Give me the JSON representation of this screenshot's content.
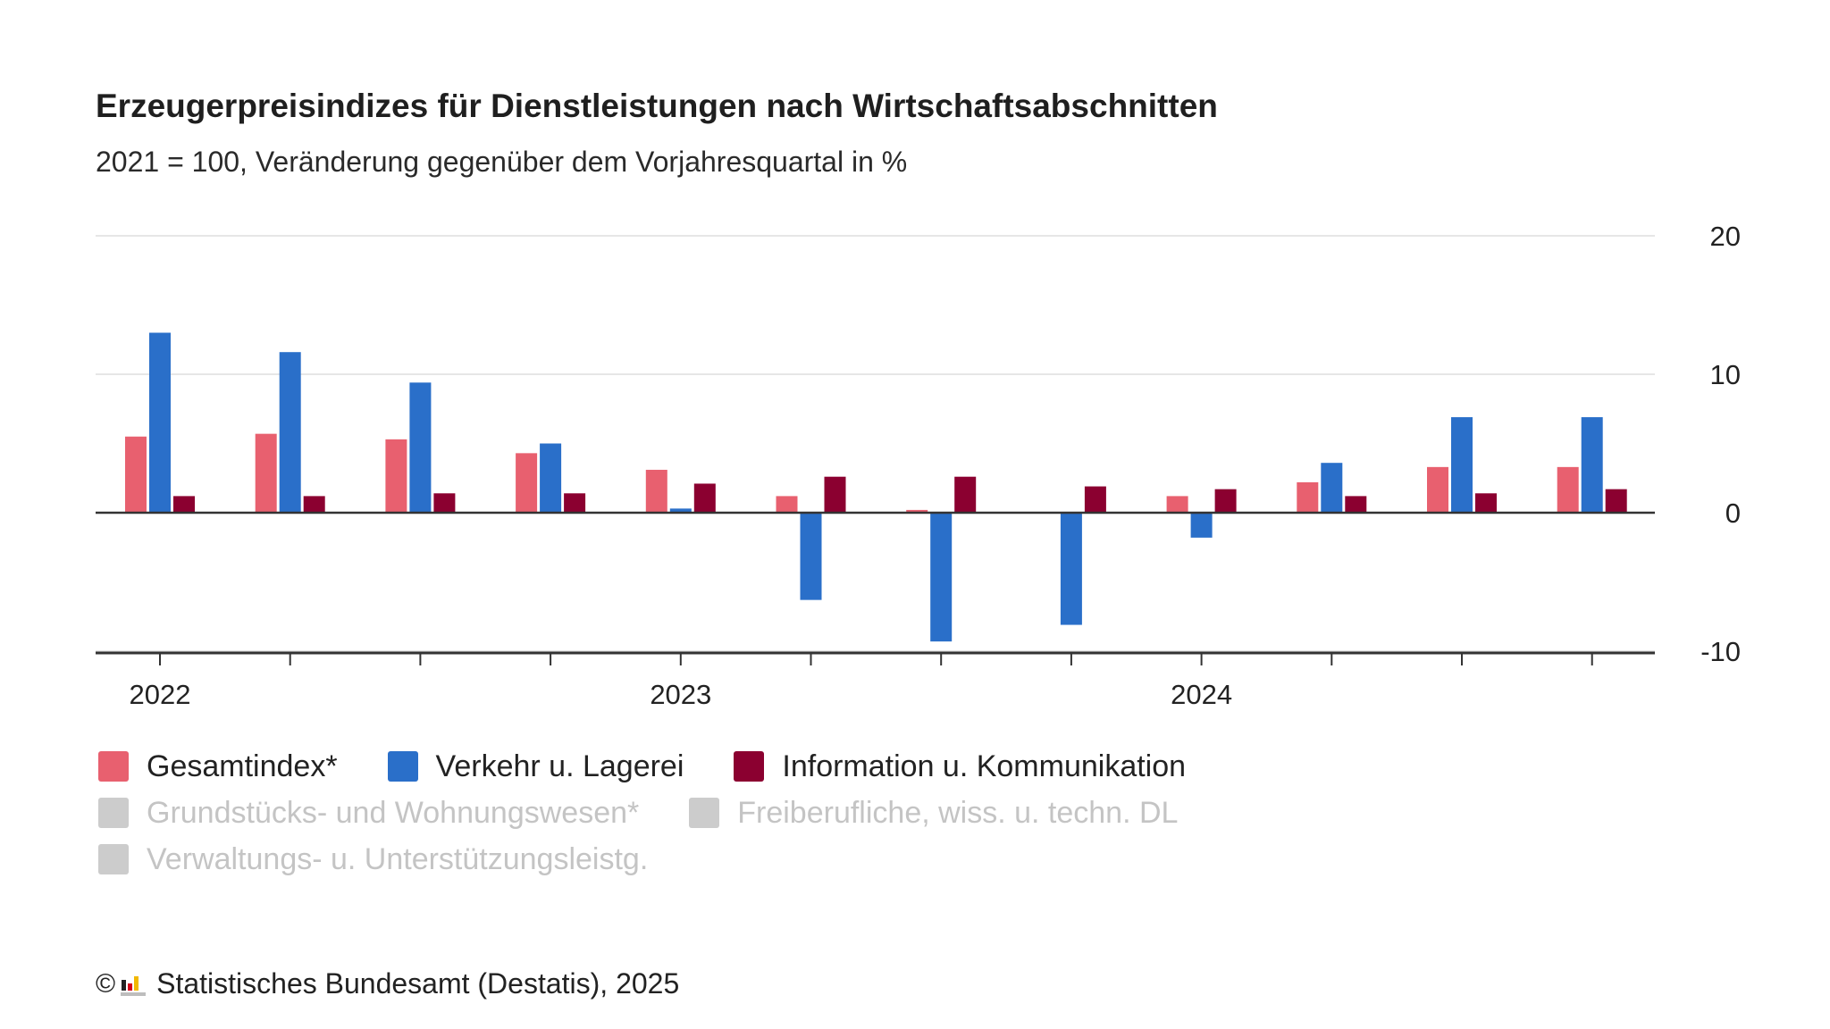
{
  "title": "Erzeugerpreisindizes für Dienstleistungen nach Wirtschaftsabschnitten",
  "subtitle": "2021 = 100, Veränderung gegenüber dem Vorjahresquartal in %",
  "footer": {
    "copyright_symbol": "©",
    "source": "Statistisches Bundesamt (Destatis), 2025"
  },
  "colors": {
    "gesamt": "#e8606f",
    "verkehr": "#2a6fc9",
    "info": "#8b0030",
    "inactive": "#cccccc",
    "axis": "#333333",
    "grid": "#dddddd"
  },
  "legend": [
    {
      "label": "Gesamtindex*",
      "color": "#e8606f",
      "active": true
    },
    {
      "label": "Verkehr u. Lagerei",
      "color": "#2a6fc9",
      "active": true
    },
    {
      "label": "Information u. Kommunikation",
      "color": "#8b0030",
      "active": true
    },
    {
      "label": "Grundstücks- und Wohnungswesen*",
      "color": "#cccccc",
      "active": false
    },
    {
      "label": "Freiberufliche, wiss. u. techn. DL",
      "color": "#cccccc",
      "active": false
    },
    {
      "label": "Verwaltungs- u. Unterstützungsleistg.",
      "color": "#cccccc",
      "active": false
    }
  ],
  "chart_data": {
    "type": "bar",
    "categories": [
      "2022 Q1",
      "2022 Q2",
      "2022 Q3",
      "2022 Q4",
      "2023 Q1",
      "2023 Q2",
      "2023 Q3",
      "2023 Q4",
      "2024 Q1",
      "2024 Q2",
      "2024 Q3",
      "2024 Q4"
    ],
    "x_tick_labels": [
      "2022",
      "",
      "",
      "",
      "2023",
      "",
      "",
      "",
      "2024",
      "",
      "",
      ""
    ],
    "series": [
      {
        "name": "Gesamtindex*",
        "color": "#e8606f",
        "values": [
          5.5,
          5.7,
          5.3,
          4.3,
          3.1,
          1.2,
          0.2,
          0.0,
          1.2,
          2.2,
          3.3,
          3.3
        ]
      },
      {
        "name": "Verkehr u. Lagerei",
        "color": "#2a6fc9",
        "values": [
          13.0,
          11.6,
          9.4,
          5.0,
          0.3,
          -6.3,
          -9.3,
          -8.1,
          -1.8,
          3.6,
          6.9,
          6.9
        ]
      },
      {
        "name": "Information u. Kommunikation",
        "color": "#8b0030",
        "values": [
          1.2,
          1.2,
          1.4,
          1.4,
          2.1,
          2.6,
          2.6,
          1.9,
          1.7,
          1.2,
          1.4,
          1.7
        ]
      }
    ],
    "ylim": [
      -10,
      20
    ],
    "yticks": [
      20,
      10,
      0,
      -10
    ],
    "ytick_labels": [
      "20",
      "10",
      "0",
      "-10"
    ],
    "y_axis_position": "right",
    "grid": true,
    "legend_position": "bottom"
  }
}
